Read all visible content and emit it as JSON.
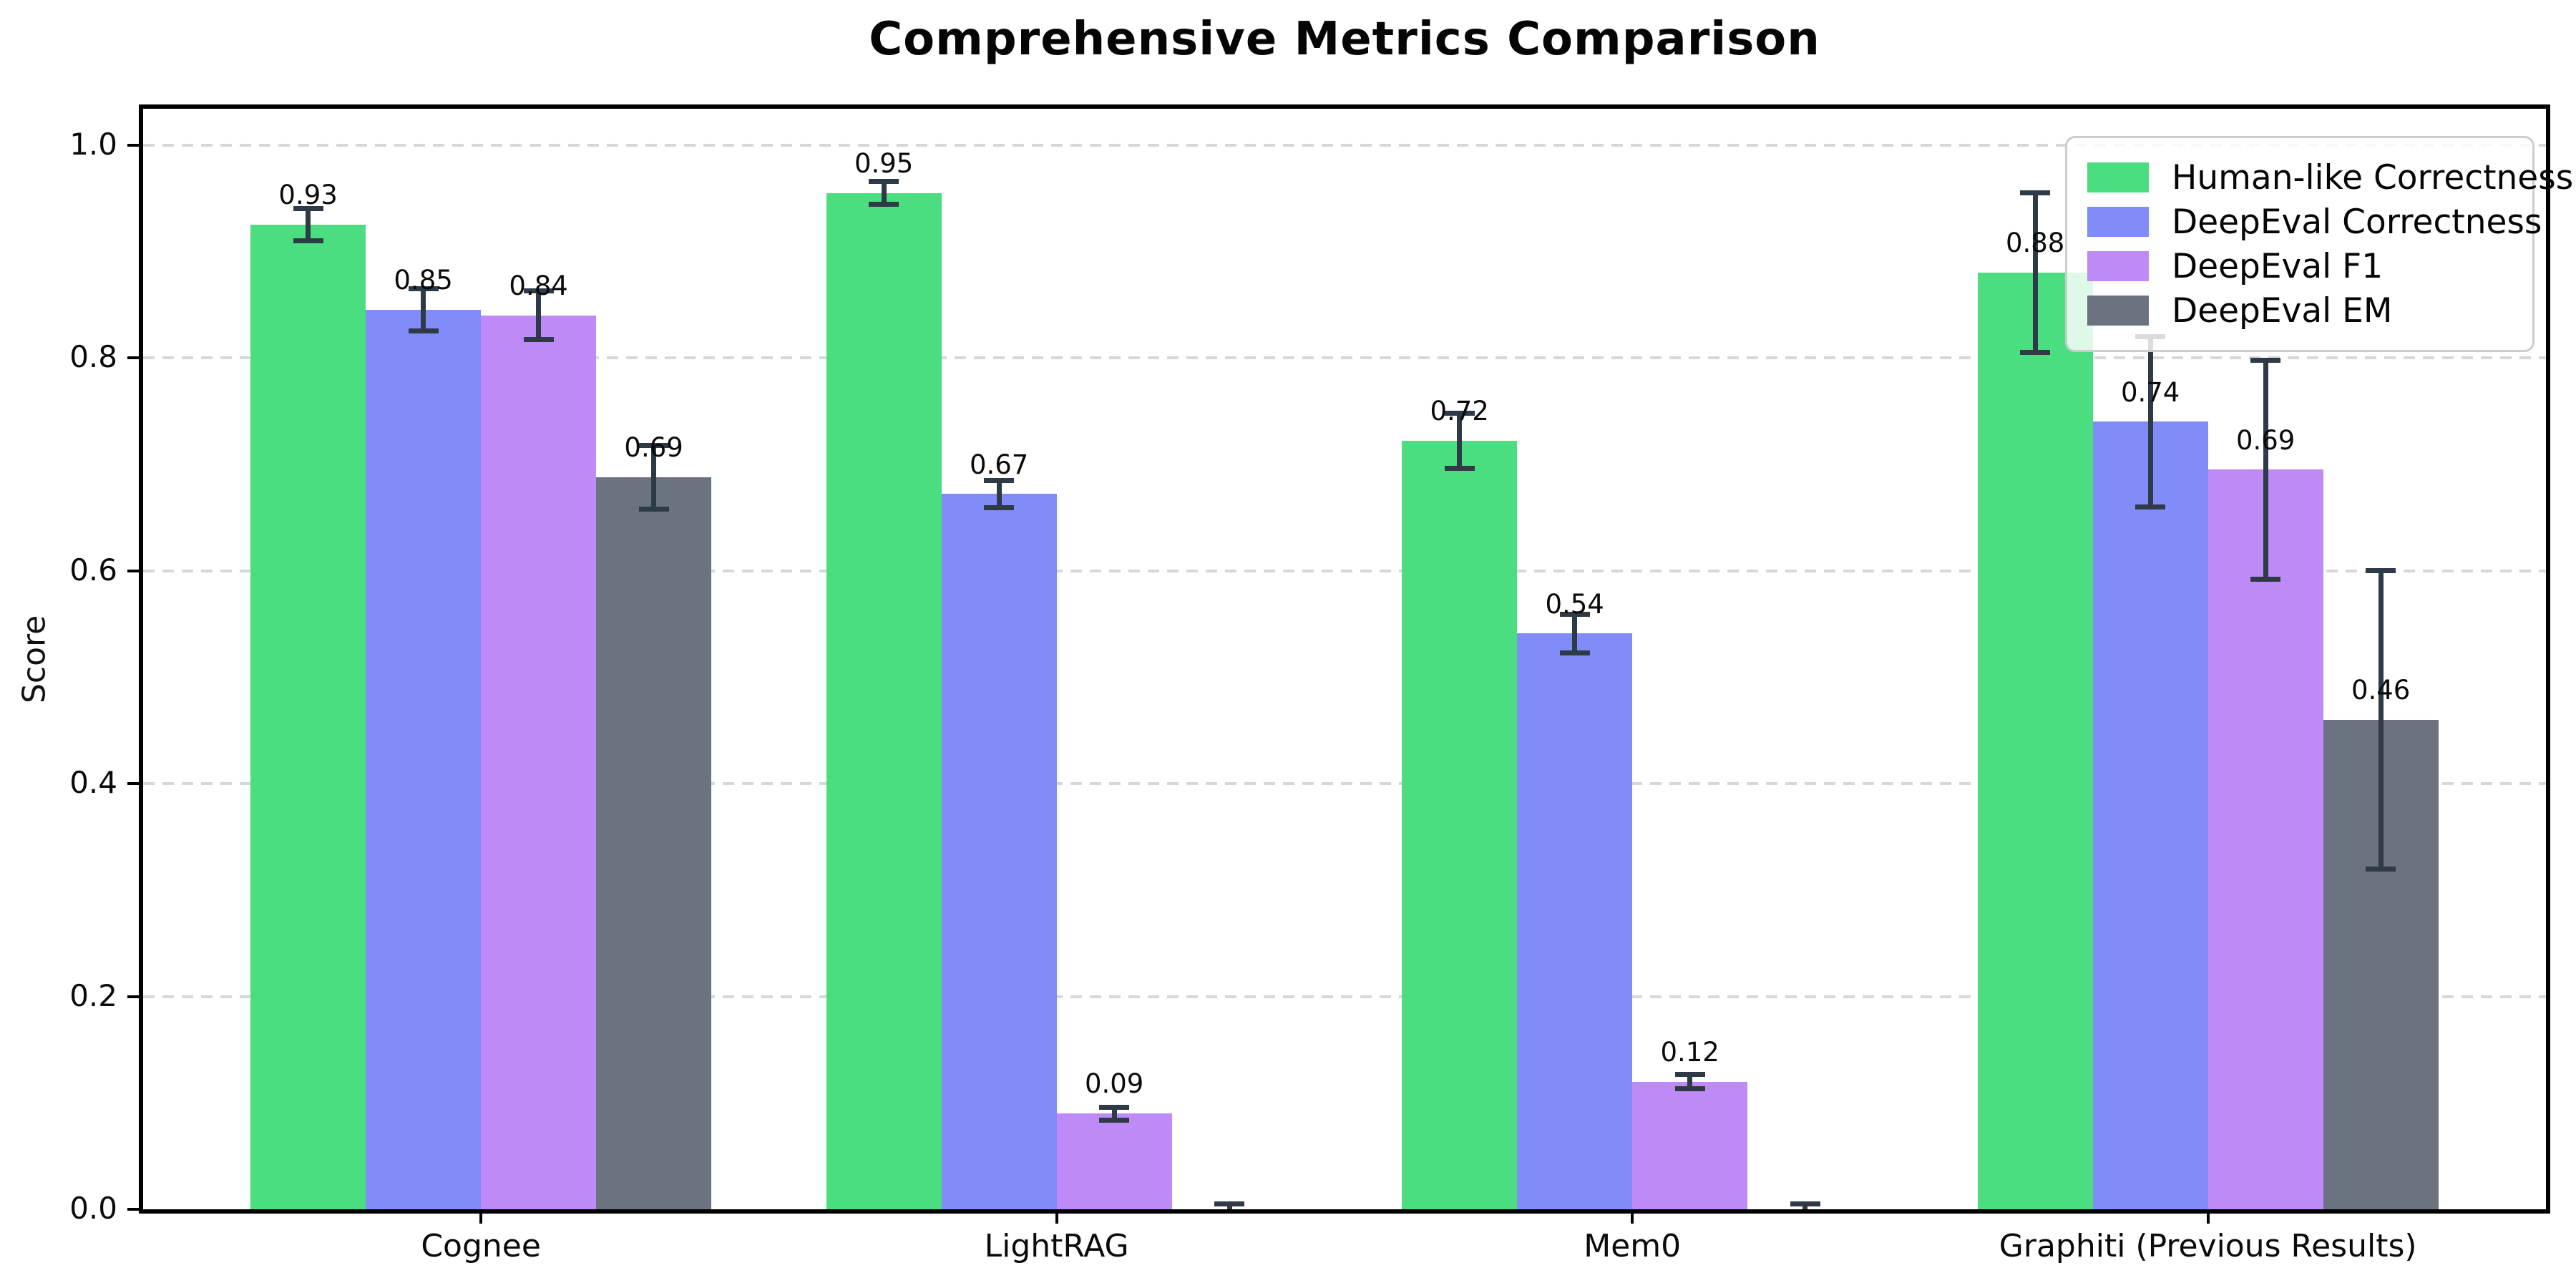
{
  "chart_data": {
    "type": "bar",
    "title": "Comprehensive Metrics Comparison",
    "xlabel": "",
    "ylabel": "Score",
    "ylim": [
      0,
      1.034
    ],
    "yticks": [
      0.0,
      0.2,
      0.4,
      0.6,
      0.8,
      1.0
    ],
    "ytick_labels": [
      "0.0",
      "0.2",
      "0.4",
      "0.6",
      "0.8",
      "1.0"
    ],
    "grid": "horizontal-dashed",
    "grid_color": "#d7d7d7",
    "background_color": "#ffffff",
    "error_bar_color": "#2f3a47",
    "legend_position": "upper right",
    "categories": [
      "Cognee",
      "LightRAG",
      "Mem0",
      "Graphiti (Previous Results)"
    ],
    "series": [
      {
        "name": "Human-like Correctness",
        "color": "#4ade80",
        "values": [
          0.925,
          0.955,
          0.722,
          0.88
        ],
        "errors": [
          0.015,
          0.011,
          0.026,
          0.075
        ],
        "labels": [
          "0.93",
          "0.95",
          "0.72",
          "0.88"
        ]
      },
      {
        "name": "DeepEval Correctness",
        "color": "#818cf8",
        "values": [
          0.845,
          0.672,
          0.541,
          0.74
        ],
        "errors": [
          0.02,
          0.013,
          0.018,
          0.08
        ],
        "labels": [
          "0.85",
          "0.67",
          "0.54",
          "0.74"
        ]
      },
      {
        "name": "DeepEval F1",
        "color": "#bd8af8",
        "values": [
          0.84,
          0.09,
          0.12,
          0.695
        ],
        "errors": [
          0.023,
          0.006,
          0.007,
          0.103
        ],
        "labels": [
          "0.84",
          "0.09",
          "0.12",
          "0.69"
        ]
      },
      {
        "name": "DeepEval EM",
        "color": "#6b7280",
        "values": [
          0.688,
          0.0,
          0.0,
          0.46
        ],
        "errors": [
          0.03,
          0.005,
          0.005,
          0.14
        ],
        "labels": [
          "0.69",
          null,
          null,
          "0.46"
        ]
      }
    ]
  }
}
